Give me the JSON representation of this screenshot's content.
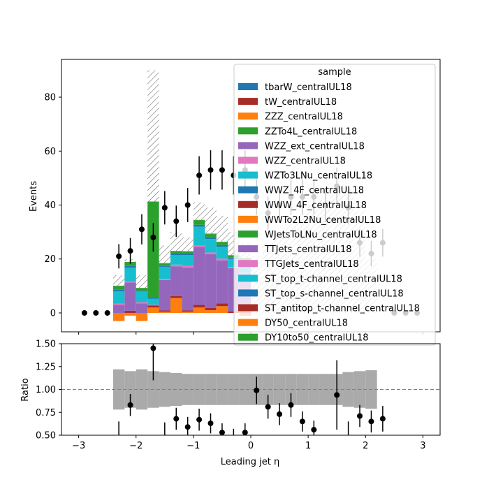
{
  "chart_data": [
    {
      "type": "bar",
      "stacked": true,
      "ylabel": "Events",
      "xlim": [
        -3.3,
        3.3
      ],
      "ylim": [
        -7,
        94
      ],
      "yticks": [
        0,
        20,
        40,
        60,
        80
      ],
      "bin_edges": [
        -2.4,
        -2.2,
        -2.0,
        -1.8,
        -1.6,
        -1.4,
        -1.2,
        -1.0,
        -0.8,
        -0.6,
        -0.4,
        -0.2,
        0.0,
        0.2,
        0.4,
        0.6,
        0.8,
        1.0,
        1.2,
        1.4,
        1.6,
        1.8,
        2.0,
        2.2
      ],
      "series": [
        {
          "name": "DY50_centralUL18",
          "color": "#ff7f0e",
          "values": [
            -3,
            -1,
            -3,
            2,
            0.5,
            5.5,
            0.5,
            2,
            1,
            2.5,
            0,
            -1,
            0,
            0,
            0,
            0,
            0,
            0,
            0,
            0,
            0,
            0,
            0
          ]
        },
        {
          "name": "ST_antitop_t-channel_centralUL18",
          "color": "#a62c28",
          "values": [
            0,
            0.8,
            0,
            0.8,
            0.4,
            0.8,
            0.4,
            1,
            0.8,
            1,
            0.6,
            0.6,
            0,
            0,
            0,
            0,
            0,
            0,
            0,
            0,
            0,
            0,
            0
          ]
        },
        {
          "name": "TTJets_centralUL18",
          "color": "#9467bd",
          "values": [
            3,
            10.5,
            3.5,
            0,
            11.3,
            11,
            16,
            21.5,
            20,
            16,
            16,
            14,
            0,
            0,
            0,
            0,
            0,
            0,
            0,
            0,
            0,
            0,
            0
          ]
        },
        {
          "name": "TTGJets_centralUL18",
          "color": "#e377c2",
          "values": [
            0.5,
            0.3,
            0.5,
            0.3,
            0.4,
            0.6,
            0.5,
            0.5,
            0.6,
            0.6,
            0.4,
            0.4,
            0,
            0,
            0,
            0,
            0,
            0,
            0,
            0,
            0,
            0,
            0
          ]
        },
        {
          "name": "ST_top_t-channel_centralUL18",
          "color": "#17becf",
          "values": [
            4.5,
            5.2,
            4,
            2.2,
            4.5,
            3.5,
            4,
            7,
            5,
            4.5,
            3,
            4,
            0,
            0,
            0,
            0,
            0,
            0,
            0,
            0,
            0,
            0,
            0
          ]
        },
        {
          "name": "WZTo3LNu_centralUL18",
          "color": "#1f77b4",
          "values": [
            0.6,
            0.6,
            0.3,
            0.5,
            0.3,
            0.6,
            0.6,
            0.7,
            0.6,
            0.6,
            0.5,
            0.5,
            0,
            0,
            0,
            0,
            0,
            0,
            0,
            0,
            0,
            0,
            0
          ]
        },
        {
          "name": "DY10to50_centralUL18",
          "color": "#2ca02c",
          "values": [
            1.2,
            1.2,
            0.8,
            29,
            0.8,
            0.7,
            0.6,
            1.5,
            1.1,
            0.9,
            0.6,
            0.6,
            0,
            0,
            0,
            0,
            0,
            0,
            0,
            0,
            0,
            0,
            0
          ]
        },
        {
          "name": "WJetsToLNu_centralUL18",
          "color": "#2ca02c",
          "values": [
            0.3,
            0.3,
            0.2,
            6.5,
            0.3,
            0.3,
            0.3,
            0.3,
            0.3,
            0.3,
            0.3,
            0.3,
            0,
            0,
            0,
            0,
            0,
            0,
            0,
            0,
            0,
            0,
            0
          ]
        }
      ],
      "uncertainty_total": [
        14,
        20,
        14,
        90,
        25,
        30,
        28,
        41,
        39,
        36,
        30,
        26,
        21,
        26,
        30,
        33,
        37,
        40,
        42,
        44,
        46,
        38,
        20
      ],
      "data_points": {
        "x": [
          -2.9,
          -2.7,
          -2.5,
          -2.3,
          -2.1,
          -1.9,
          -1.7,
          -1.5,
          -1.3,
          -1.1,
          -0.9,
          -0.7,
          -0.5,
          -0.3,
          -0.1,
          0.1,
          0.3,
          0.5,
          0.7,
          0.9,
          1.1,
          1.3,
          1.5,
          1.7,
          1.9,
          2.1,
          2.3,
          2.5,
          2.7,
          2.9
        ],
        "y": [
          0,
          0,
          0,
          21,
          23,
          31,
          28,
          39,
          34,
          40,
          51,
          53,
          53,
          51,
          53,
          43,
          37,
          40,
          43,
          43,
          43,
          40,
          47,
          39,
          26,
          22,
          26,
          0,
          0,
          0
        ],
        "err": [
          0,
          0,
          0,
          4.5,
          4.8,
          5.6,
          5.3,
          6.2,
          5.8,
          6.3,
          7.1,
          7.3,
          7.3,
          7.1,
          7.3,
          6.6,
          6.1,
          6.3,
          6.6,
          6.6,
          6.6,
          6.3,
          6.9,
          6.2,
          5.1,
          4.7,
          5.1,
          0,
          0,
          0
        ]
      },
      "legend": {
        "title": "sample",
        "location": "upper right",
        "entries": [
          {
            "name": "tbarW_centralUL18",
            "color": "#1f77b4"
          },
          {
            "name": "tW_centralUL18",
            "color": "#a62c28"
          },
          {
            "name": "ZZZ_centralUL18",
            "color": "#ff7f0e"
          },
          {
            "name": "ZZTo4L_centralUL18",
            "color": "#2ca02c"
          },
          {
            "name": "WZZ_ext_centralUL18",
            "color": "#9467bd"
          },
          {
            "name": "WZZ_centralUL18",
            "color": "#e377c2"
          },
          {
            "name": "WZTo3LNu_centralUL18",
            "color": "#17becf"
          },
          {
            "name": "WWZ_4F_centralUL18",
            "color": "#1f77b4"
          },
          {
            "name": "WWW_4F_centralUL18",
            "color": "#a62c28"
          },
          {
            "name": "WWTo2L2Nu_centralUL18",
            "color": "#ff7f0e"
          },
          {
            "name": "WJetsToLNu_centralUL18",
            "color": "#2ca02c"
          },
          {
            "name": "TTJets_centralUL18",
            "color": "#9467bd"
          },
          {
            "name": "TTGJets_centralUL18",
            "color": "#e377c2"
          },
          {
            "name": "ST_top_t-channel_centralUL18",
            "color": "#17becf"
          },
          {
            "name": "ST_top_s-channel_centralUL18",
            "color": "#1f77b4"
          },
          {
            "name": "ST_antitop_t-channel_centralUL18",
            "color": "#a62c28"
          },
          {
            "name": "DY50_centralUL18",
            "color": "#ff7f0e"
          },
          {
            "name": "DY10to50_centralUL18",
            "color": "#2ca02c"
          }
        ]
      }
    },
    {
      "type": "scatter",
      "xlabel": "Leading jet  η",
      "ylabel": "Ratio",
      "xlim": [
        -3.3,
        3.3
      ],
      "ylim": [
        0.5,
        1.5
      ],
      "yticks": [
        0.5,
        0.75,
        1.0,
        1.25,
        1.5
      ],
      "ytick_labels": [
        "0.50",
        "0.75",
        "1.00",
        "1.25",
        "1.50"
      ],
      "xticks": [
        -3,
        -2,
        -1,
        0,
        1,
        2,
        3
      ],
      "xtick_labels": [
        "−3",
        "−2",
        "−1",
        "0",
        "1",
        "2",
        "3"
      ],
      "reference_line": 1.0,
      "uncertainty_band": {
        "bin_edges": [
          -2.4,
          -2.2,
          -2.0,
          -1.8,
          -1.6,
          -1.4,
          -1.2,
          -1.0,
          -0.8,
          -0.6,
          -0.4,
          -0.2,
          0.0,
          0.2,
          0.4,
          0.6,
          0.8,
          1.0,
          1.2,
          1.4,
          1.6,
          1.8,
          2.0,
          2.2
        ],
        "low": [
          0.78,
          0.8,
          0.78,
          0.8,
          0.81,
          0.82,
          0.83,
          0.83,
          0.83,
          0.83,
          0.83,
          0.83,
          0.83,
          0.83,
          0.83,
          0.83,
          0.83,
          0.83,
          0.83,
          0.83,
          0.81,
          0.8,
          0.79
        ],
        "high": [
          1.22,
          1.2,
          1.22,
          1.2,
          1.19,
          1.18,
          1.17,
          1.17,
          1.17,
          1.17,
          1.17,
          1.17,
          1.17,
          1.17,
          1.17,
          1.17,
          1.17,
          1.17,
          1.17,
          1.17,
          1.19,
          1.2,
          1.21
        ]
      },
      "points": {
        "x": [
          -2.3,
          -2.1,
          -1.7,
          -1.5,
          -1.3,
          -1.1,
          -0.9,
          -0.7,
          -0.5,
          -0.3,
          -0.1,
          0.1,
          0.3,
          0.5,
          0.7,
          0.9,
          1.1,
          1.5,
          1.7,
          1.9,
          2.1,
          2.3
        ],
        "y": [
          0.45,
          0.83,
          1.45,
          0.45,
          0.68,
          0.59,
          0.67,
          0.63,
          0.53,
          0.47,
          0.53,
          0.99,
          0.81,
          0.73,
          0.83,
          0.65,
          0.56,
          0.94,
          0.45,
          0.71,
          0.65,
          0.68
        ],
        "err": [
          0.2,
          0.12,
          0.35,
          0.19,
          0.12,
          0.11,
          0.12,
          0.11,
          0.1,
          0.1,
          0.1,
          0.15,
          0.13,
          0.12,
          0.13,
          0.11,
          0.1,
          0.38,
          0.2,
          0.12,
          0.12,
          0.14
        ]
      }
    }
  ]
}
